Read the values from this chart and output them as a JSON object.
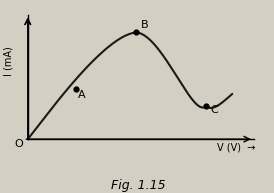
{
  "title": "Fig. 1.15",
  "xlabel": "V (V)",
  "ylabel": "I (mA)",
  "bg_color": "#d4cfc3",
  "curve_color": "#1a1a1a",
  "point_A": [
    0.22,
    0.42
  ],
  "point_B": [
    0.5,
    0.9
  ],
  "point_C": [
    0.82,
    0.28
  ],
  "label_A": "A",
  "label_B": "B",
  "label_C": "C",
  "label_O": "O",
  "figsize": [
    2.74,
    1.93
  ],
  "dpi": 100
}
